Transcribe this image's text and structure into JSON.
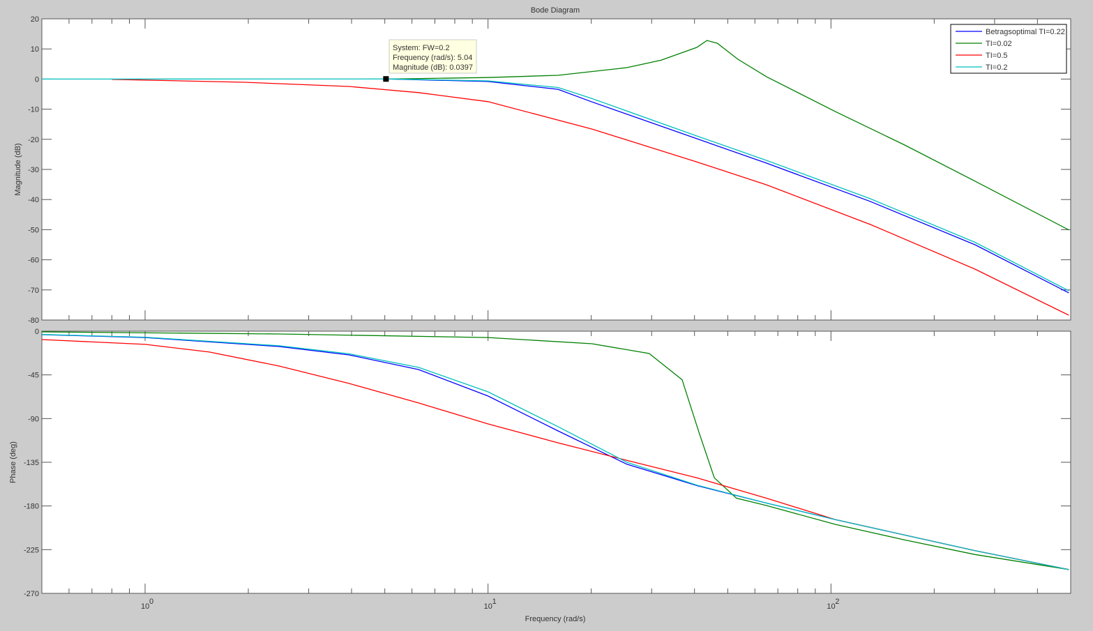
{
  "chart_data": [
    {
      "type": "line",
      "title": "Bode Diagram",
      "xlabel": "Frequency  (rad/s)",
      "ylabel": "Magnitude (dB)",
      "xscale": "log",
      "xlim": [
        0.5,
        500
      ],
      "ylim": [
        -80,
        20
      ],
      "yticks": [
        20,
        10,
        0,
        -10,
        -20,
        -30,
        -40,
        -50,
        -60,
        -70,
        -80
      ],
      "xtick_labels": [
        "10^0",
        "10^1",
        "10^2"
      ],
      "grid": false,
      "legend_placement": "top-right",
      "series": [
        {
          "name": "Betragsoptimal TI=0.22",
          "color": "#0000ff",
          "x": [
            5.04,
            10,
            16,
            20,
            40.6,
            64.8,
            130,
            263,
            494
          ],
          "y": [
            0.04,
            -0.8,
            -3.4,
            -7.5,
            -19.8,
            -27.9,
            -40.6,
            -55,
            -71
          ]
        },
        {
          "name": "TI=0.02",
          "color": "#008000",
          "x": [
            5.04,
            10,
            16,
            25.4,
            32,
            40.6,
            43.5,
            46.6,
            53.5,
            64.8,
            103,
            164,
            263,
            494
          ],
          "y": [
            0,
            0.5,
            1.25,
            3.8,
            6.3,
            10.5,
            12.8,
            11.9,
            6.6,
            0.8,
            -10.8,
            -21.9,
            -33.9,
            -50.1
          ]
        },
        {
          "name": "TI=0.5",
          "color": "#ff0000",
          "x": [
            0.8,
            1.95,
            3.93,
            6.27,
            10,
            20.1,
            40.6,
            64.8,
            130.5,
            263,
            494
          ],
          "y": [
            -0.1,
            -1.06,
            -2.45,
            -4.5,
            -7.5,
            -16.6,
            -27.5,
            -35.1,
            -48.3,
            -63.1,
            -78.4
          ]
        },
        {
          "name": "TI=0.2",
          "color": "#00bfbf",
          "x": [
            0.5,
            5.04,
            10,
            16,
            20,
            40.6,
            64.8,
            130,
            263,
            494
          ],
          "y": [
            0,
            0.04,
            -0.6,
            -2.8,
            -6.4,
            -18.9,
            -27,
            -39.7,
            -54.2,
            -70.3
          ]
        }
      ],
      "datatip": {
        "system": "System: FW=0.2",
        "frequency": "Frequency (rad/s): 5.04",
        "magnitude": "Magnitude (dB): 0.0397",
        "x": 5.04,
        "y": 0.0397
      }
    },
    {
      "type": "line",
      "xlabel": "Frequency  (rad/s)",
      "ylabel": "Phase (deg)",
      "xscale": "log",
      "xlim": [
        0.5,
        500
      ],
      "ylim": [
        -270,
        0
      ],
      "yticks": [
        0,
        -45,
        -90,
        -135,
        -180,
        -225,
        -270
      ],
      "grid": false,
      "series": [
        {
          "name": "Betragsoptimal TI=0.22",
          "color": "#0000ff",
          "x": [
            0.5,
            1,
            2.46,
            3.93,
            6.27,
            10,
            16,
            25.4,
            40.6,
            64.8,
            103,
            164,
            263,
            494
          ],
          "y": [
            -3.6,
            -6.5,
            -15.8,
            -24.4,
            -39.5,
            -66.8,
            -102.7,
            -137,
            -159,
            -177,
            -194,
            -210,
            -226,
            -245.5
          ]
        },
        {
          "name": "TI=0.02",
          "color": "#008000",
          "x": [
            0.5,
            2.46,
            10,
            20.1,
            29.5,
            36.8,
            41.2,
            45.7,
            53,
            64.8,
            103,
            164,
            263,
            494
          ],
          "y": [
            -0.7,
            -2.9,
            -6.5,
            -12.9,
            -23,
            -50,
            -104,
            -151,
            -172,
            -179.5,
            -199,
            -215,
            -230,
            -245.5
          ]
        },
        {
          "name": "TI=0.5",
          "color": "#ff0000",
          "x": [
            0.5,
            1,
            1.54,
            2.46,
            3.93,
            6.27,
            10,
            16,
            25.4,
            40.6,
            64.8,
            103,
            164,
            263,
            494
          ],
          "y": [
            -8.6,
            -13.6,
            -21.5,
            -35.9,
            -53.8,
            -73.9,
            -95.5,
            -115,
            -133,
            -151,
            -172,
            -194,
            -210,
            -226,
            -245.5
          ]
        },
        {
          "name": "TI=0.2",
          "color": "#00bfbf",
          "x": [
            0.5,
            1,
            2.46,
            3.93,
            6.27,
            10,
            16,
            25.4,
            40.6,
            64.8,
            103,
            164,
            263,
            494
          ],
          "y": [
            -3.4,
            -6.2,
            -15,
            -23.3,
            -37.3,
            -62.5,
            -98.3,
            -135,
            -158.5,
            -177,
            -194,
            -210,
            -226,
            -245.5
          ]
        }
      ]
    }
  ]
}
